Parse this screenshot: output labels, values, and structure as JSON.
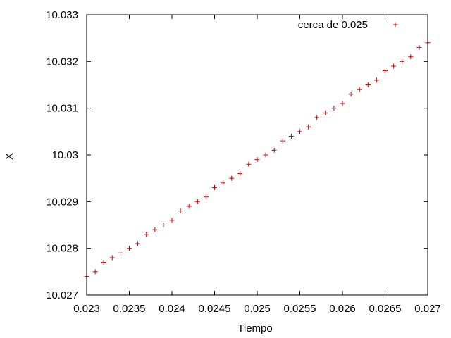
{
  "colors": {
    "series": "#d00000",
    "axis": "#000000",
    "background": "#ffffff"
  },
  "chart_data": {
    "type": "scatter",
    "title": "",
    "xlabel": "Tiempo",
    "ylabel": "X",
    "xlim": [
      0.023,
      0.027
    ],
    "ylim": [
      10.027,
      10.033
    ],
    "grid": false,
    "legend_position": "top-right",
    "marker": "plus",
    "x_ticks": [
      0.023,
      0.0235,
      0.024,
      0.0245,
      0.025,
      0.0255,
      0.026,
      0.0265,
      0.027
    ],
    "x_tick_labels": [
      "0.023",
      "0.0235",
      "0.024",
      "0.0245",
      "0.025",
      "0.0255",
      "0.026",
      "0.0265",
      "0.027"
    ],
    "y_ticks": [
      10.027,
      10.028,
      10.029,
      10.03,
      10.031,
      10.032,
      10.033
    ],
    "y_tick_labels": [
      "10.027",
      "10.028",
      "10.029",
      "10.03",
      "10.031",
      "10.032",
      "10.033"
    ],
    "series": [
      {
        "name": "cerca de 0.025",
        "color": "#d00000",
        "x": [
          0.023,
          0.0231,
          0.0232,
          0.0233,
          0.0234,
          0.0235,
          0.0236,
          0.0237,
          0.0238,
          0.0239,
          0.024,
          0.0241,
          0.0242,
          0.0243,
          0.0244,
          0.0245,
          0.0246,
          0.0247,
          0.0248,
          0.0249,
          0.025,
          0.0251,
          0.0252,
          0.0253,
          0.0254,
          0.0255,
          0.0256,
          0.0257,
          0.0258,
          0.0259,
          0.026,
          0.0261,
          0.0262,
          0.0263,
          0.0264,
          0.0265,
          0.0266,
          0.0267,
          0.0268,
          0.0269,
          0.027
        ],
        "y": [
          10.0274,
          10.0275,
          10.0277,
          10.0278,
          10.0279,
          10.028,
          10.0281,
          10.0283,
          10.0284,
          10.0285,
          10.0286,
          10.0288,
          10.0289,
          10.029,
          10.0291,
          10.0293,
          10.0294,
          10.0295,
          10.0296,
          10.0298,
          10.0299,
          10.03,
          10.0301,
          10.0303,
          10.0304,
          10.0305,
          10.0306,
          10.0308,
          10.0309,
          10.031,
          10.0311,
          10.0313,
          10.0314,
          10.0315,
          10.0316,
          10.0318,
          10.0319,
          10.032,
          10.0321,
          10.0323,
          10.0324
        ]
      }
    ]
  }
}
